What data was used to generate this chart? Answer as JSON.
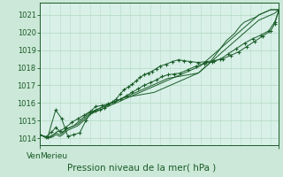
{
  "bg_color": "#cce8d8",
  "plot_bg_color": "#d8f0e8",
  "grid_color": "#b8dcc8",
  "line_color": "#1a5c28",
  "title": "Pression niveau de la mer( hPa )",
  "xlabel_left": "Merieu",
  "xlabel_right": "Ven",
  "ylim": [
    1013.6,
    1021.7
  ],
  "yticks": [
    1014,
    1015,
    1016,
    1017,
    1018,
    1019,
    1020,
    1021
  ],
  "n_points": 120,
  "line1": [
    1014.2,
    1014.15,
    1014.1,
    1014.08,
    1014.05,
    1014.1,
    1014.15,
    1014.2,
    1014.3,
    1014.4,
    1014.35,
    1014.3,
    1014.4,
    1014.5,
    1014.55,
    1014.6,
    1014.65,
    1014.7,
    1014.8,
    1014.9,
    1015.0,
    1015.1,
    1015.2,
    1015.3,
    1015.4,
    1015.45,
    1015.5,
    1015.55,
    1015.6,
    1015.65,
    1015.7,
    1015.75,
    1015.8,
    1015.85,
    1015.9,
    1015.95,
    1016.0,
    1016.05,
    1016.1,
    1016.15,
    1016.2,
    1016.25,
    1016.3,
    1016.35,
    1016.4,
    1016.45,
    1016.5,
    1016.55,
    1016.6,
    1016.65,
    1016.7,
    1016.75,
    1016.8,
    1016.85,
    1016.9,
    1016.95,
    1017.0,
    1017.05,
    1017.1,
    1017.15,
    1017.2,
    1017.25,
    1017.3,
    1017.35,
    1017.4,
    1017.42,
    1017.44,
    1017.46,
    1017.48,
    1017.5,
    1017.52,
    1017.54,
    1017.56,
    1017.58,
    1017.6,
    1017.62,
    1017.64,
    1017.66,
    1017.68,
    1017.7,
    1017.8,
    1017.9,
    1018.0,
    1018.1,
    1018.2,
    1018.3,
    1018.4,
    1018.5,
    1018.6,
    1018.7,
    1018.8,
    1018.9,
    1019.0,
    1019.1,
    1019.2,
    1019.3,
    1019.4,
    1019.5,
    1019.6,
    1019.7,
    1019.8,
    1019.9,
    1020.0,
    1020.1,
    1020.2,
    1020.3,
    1020.4,
    1020.5,
    1020.6,
    1020.7,
    1020.75,
    1020.8,
    1020.85,
    1020.9,
    1020.95,
    1021.0,
    1021.05,
    1021.1,
    1021.2,
    1021.3
  ],
  "line2": [
    1014.2,
    1014.15,
    1014.1,
    1014.05,
    1014.0,
    1014.05,
    1014.1,
    1014.2,
    1014.3,
    1014.25,
    1014.2,
    1014.25,
    1014.35,
    1014.45,
    1014.55,
    1014.6,
    1014.65,
    1014.7,
    1014.75,
    1014.8,
    1014.9,
    1015.0,
    1015.1,
    1015.2,
    1015.3,
    1015.4,
    1015.5,
    1015.55,
    1015.6,
    1015.65,
    1015.7,
    1015.75,
    1015.8,
    1015.85,
    1015.9,
    1015.95,
    1016.0,
    1016.05,
    1016.1,
    1016.15,
    1016.2,
    1016.25,
    1016.3,
    1016.32,
    1016.34,
    1016.36,
    1016.38,
    1016.4,
    1016.42,
    1016.44,
    1016.46,
    1016.48,
    1016.5,
    1016.52,
    1016.54,
    1016.56,
    1016.58,
    1016.6,
    1016.65,
    1016.7,
    1016.75,
    1016.8,
    1016.85,
    1016.9,
    1016.95,
    1017.0,
    1017.05,
    1017.1,
    1017.15,
    1017.2,
    1017.25,
    1017.3,
    1017.35,
    1017.4,
    1017.45,
    1017.5,
    1017.55,
    1017.6,
    1017.65,
    1017.7,
    1017.8,
    1017.9,
    1018.0,
    1018.1,
    1018.2,
    1018.35,
    1018.5,
    1018.65,
    1018.8,
    1018.95,
    1019.1,
    1019.25,
    1019.4,
    1019.55,
    1019.65,
    1019.75,
    1019.85,
    1019.95,
    1020.1,
    1020.25,
    1020.4,
    1020.5,
    1020.6,
    1020.65,
    1020.7,
    1020.75,
    1020.8,
    1020.85,
    1020.9,
    1021.0,
    1021.05,
    1021.1,
    1021.15,
    1021.2,
    1021.25,
    1021.3,
    1021.3,
    1021.3,
    1021.3,
    1021.3
  ],
  "line3": [
    1014.2,
    1014.15,
    1014.1,
    1014.05,
    1014.0,
    1014.02,
    1014.05,
    1014.1,
    1014.2,
    1014.15,
    1014.1,
    1014.15,
    1014.25,
    1014.35,
    1014.45,
    1014.5,
    1014.55,
    1014.6,
    1014.65,
    1014.7,
    1014.8,
    1014.9,
    1015.0,
    1015.1,
    1015.2,
    1015.3,
    1015.4,
    1015.45,
    1015.5,
    1015.55,
    1015.6,
    1015.65,
    1015.7,
    1015.75,
    1015.8,
    1015.85,
    1015.9,
    1015.95,
    1016.0,
    1016.05,
    1016.1,
    1016.15,
    1016.2,
    1016.25,
    1016.3,
    1016.35,
    1016.4,
    1016.45,
    1016.5,
    1016.55,
    1016.6,
    1016.65,
    1016.7,
    1016.75,
    1016.8,
    1016.85,
    1016.9,
    1016.95,
    1017.0,
    1017.05,
    1017.1,
    1017.15,
    1017.2,
    1017.25,
    1017.3,
    1017.35,
    1017.4,
    1017.45,
    1017.5,
    1017.55,
    1017.6,
    1017.65,
    1017.7,
    1017.75,
    1017.8,
    1017.85,
    1017.9,
    1017.95,
    1018.0,
    1018.05,
    1018.1,
    1018.2,
    1018.3,
    1018.4,
    1018.5,
    1018.6,
    1018.7,
    1018.8,
    1018.9,
    1019.0,
    1019.1,
    1019.2,
    1019.3,
    1019.4,
    1019.5,
    1019.6,
    1019.7,
    1019.8,
    1019.9,
    1020.0,
    1020.1,
    1020.2,
    1020.3,
    1020.4,
    1020.5,
    1020.6,
    1020.7,
    1020.8,
    1020.9,
    1021.0,
    1021.05,
    1021.1,
    1021.15,
    1021.2,
    1021.25,
    1021.3,
    1021.3,
    1021.3,
    1021.3,
    1021.3
  ],
  "line4_x": [
    0,
    3,
    6,
    8,
    10,
    13,
    16,
    19,
    22,
    25,
    28,
    31,
    34,
    37,
    40,
    43,
    46,
    49,
    52,
    55,
    58,
    61,
    64,
    67,
    70,
    74,
    78,
    82,
    86,
    90,
    94,
    98,
    102,
    106,
    110,
    114,
    117,
    119
  ],
  "line4_y": [
    1014.2,
    1014.05,
    1014.35,
    1014.6,
    1014.4,
    1014.6,
    1014.9,
    1015.1,
    1015.3,
    1015.5,
    1015.8,
    1015.85,
    1015.95,
    1016.05,
    1016.2,
    1016.4,
    1016.6,
    1016.8,
    1017.0,
    1017.15,
    1017.3,
    1017.5,
    1017.6,
    1017.65,
    1017.7,
    1017.9,
    1018.1,
    1018.25,
    1018.35,
    1018.5,
    1018.8,
    1019.1,
    1019.4,
    1019.65,
    1019.85,
    1020.1,
    1020.6,
    1021.25
  ],
  "line5_x": [
    0,
    4,
    8,
    11,
    14,
    17,
    20,
    23,
    26,
    28,
    30,
    32,
    34,
    36,
    38,
    40,
    42,
    44,
    46,
    48,
    50,
    52,
    54,
    56,
    58,
    60,
    63,
    66,
    69,
    72,
    75,
    79,
    83,
    87,
    91,
    95,
    99,
    103,
    107,
    111,
    115,
    117,
    119
  ],
  "line5_y": [
    1014.2,
    1014.05,
    1015.6,
    1015.1,
    1014.1,
    1014.2,
    1014.3,
    1015.0,
    1015.5,
    1015.55,
    1015.6,
    1015.7,
    1015.9,
    1016.05,
    1016.2,
    1016.5,
    1016.75,
    1016.9,
    1017.05,
    1017.25,
    1017.45,
    1017.6,
    1017.7,
    1017.8,
    1017.95,
    1018.1,
    1018.2,
    1018.35,
    1018.45,
    1018.4,
    1018.35,
    1018.3,
    1018.35,
    1018.4,
    1018.5,
    1018.7,
    1018.9,
    1019.2,
    1019.5,
    1019.8,
    1020.1,
    1020.5,
    1021.25
  ]
}
